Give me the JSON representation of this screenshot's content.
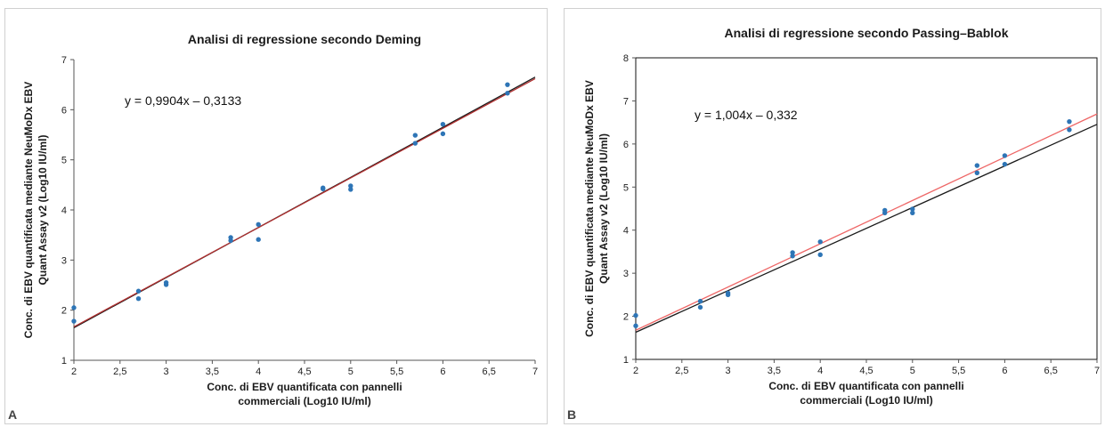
{
  "chart_data": [
    {
      "type": "scatter",
      "panel_label": "A",
      "title": "Analisi di regressione secondo Deming",
      "xlabel_lines": [
        "Conc. di EBV quantificata con pannelli",
        "commerciali (Log10 IU/ml)"
      ],
      "ylabel_lines": [
        "Conc. di EBV quantificata mediante NeuMoDx EBV",
        "Quant Assay v2 (Log10 IU/ml)"
      ],
      "xlim": [
        2,
        7
      ],
      "ylim": [
        1,
        7
      ],
      "xticks": [
        2,
        2.5,
        3,
        3.5,
        4,
        4.5,
        5,
        5.5,
        6,
        6.5,
        7
      ],
      "yticks": [
        1,
        2,
        3,
        4,
        5,
        6,
        7
      ],
      "xtick_labels": [
        "2",
        "2,5",
        "3",
        "3,5",
        "4",
        "4,5",
        "5",
        "5,5",
        "6",
        "6,5",
        "7"
      ],
      "ytick_labels": [
        "1",
        "2",
        "3",
        "4",
        "5",
        "6",
        "7"
      ],
      "equation": "y = 0,9904x – 0,3133",
      "border": "left-bottom",
      "point_color": "#2e75b6",
      "points": [
        {
          "x": 2.0,
          "y": 2.05
        },
        {
          "x": 2.0,
          "y": 1.78
        },
        {
          "x": 2.7,
          "y": 2.38
        },
        {
          "x": 2.7,
          "y": 2.23
        },
        {
          "x": 3.0,
          "y": 2.55
        },
        {
          "x": 3.0,
          "y": 2.51
        },
        {
          "x": 3.7,
          "y": 3.45
        },
        {
          "x": 3.7,
          "y": 3.39
        },
        {
          "x": 4.0,
          "y": 3.71
        },
        {
          "x": 4.0,
          "y": 3.41
        },
        {
          "x": 4.7,
          "y": 4.44
        },
        {
          "x": 4.7,
          "y": 4.42
        },
        {
          "x": 5.0,
          "y": 4.48
        },
        {
          "x": 5.0,
          "y": 4.41
        },
        {
          "x": 5.7,
          "y": 5.49
        },
        {
          "x": 5.7,
          "y": 5.33
        },
        {
          "x": 6.0,
          "y": 5.71
        },
        {
          "x": 6.0,
          "y": 5.52
        },
        {
          "x": 6.7,
          "y": 6.5
        },
        {
          "x": 6.7,
          "y": 6.33
        }
      ],
      "lines": [
        {
          "slope": 1.0,
          "intercept": -0.35,
          "color": "#1a1a1a"
        },
        {
          "slope": 0.9904,
          "intercept": -0.3133,
          "color": "#b03030"
        }
      ]
    },
    {
      "type": "scatter",
      "panel_label": "B",
      "title": "Analisi di regressione secondo Passing–Bablok",
      "xlabel_lines": [
        "Conc. di EBV quantificata con pannelli",
        "commerciali (Log10 IU/ml)"
      ],
      "ylabel_lines": [
        "Conc. di EBV quantificata mediante NeuMoDx EBV",
        "Quant Assay v2 (Log10 IU/ml)"
      ],
      "xlim": [
        2,
        7
      ],
      "ylim": [
        1,
        8
      ],
      "xticks": [
        2,
        2.5,
        3,
        3.5,
        4,
        4.5,
        5,
        5.5,
        6,
        6.5,
        7
      ],
      "yticks": [
        1,
        2,
        3,
        4,
        5,
        6,
        7,
        8
      ],
      "xtick_labels": [
        "2",
        "2,5",
        "3",
        "3,5",
        "4",
        "4,5",
        "5",
        "5,5",
        "6",
        "6,5",
        "7"
      ],
      "ytick_labels": [
        "1",
        "2",
        "3",
        "4",
        "5",
        "6",
        "7",
        "8"
      ],
      "equation": "y = 1,004x – 0,332",
      "border": "box",
      "point_color": "#2e75b6",
      "points": [
        {
          "x": 2.0,
          "y": 2.02
        },
        {
          "x": 2.0,
          "y": 1.78
        },
        {
          "x": 2.7,
          "y": 2.35
        },
        {
          "x": 2.7,
          "y": 2.21
        },
        {
          "x": 3.0,
          "y": 2.54
        },
        {
          "x": 3.0,
          "y": 2.5
        },
        {
          "x": 3.7,
          "y": 3.48
        },
        {
          "x": 3.7,
          "y": 3.4
        },
        {
          "x": 4.0,
          "y": 3.73
        },
        {
          "x": 4.0,
          "y": 3.43
        },
        {
          "x": 4.7,
          "y": 4.46
        },
        {
          "x": 4.7,
          "y": 4.4
        },
        {
          "x": 5.0,
          "y": 4.49
        },
        {
          "x": 5.0,
          "y": 4.4
        },
        {
          "x": 5.7,
          "y": 5.5
        },
        {
          "x": 5.7,
          "y": 5.33
        },
        {
          "x": 6.0,
          "y": 5.73
        },
        {
          "x": 6.0,
          "y": 5.53
        },
        {
          "x": 6.7,
          "y": 6.52
        },
        {
          "x": 6.7,
          "y": 6.33
        }
      ],
      "lines": [
        {
          "slope": 0.965,
          "intercept": -0.3,
          "color": "#1a1a1a"
        },
        {
          "slope": 1.004,
          "intercept": -0.332,
          "color": "#ee6666"
        }
      ]
    }
  ]
}
